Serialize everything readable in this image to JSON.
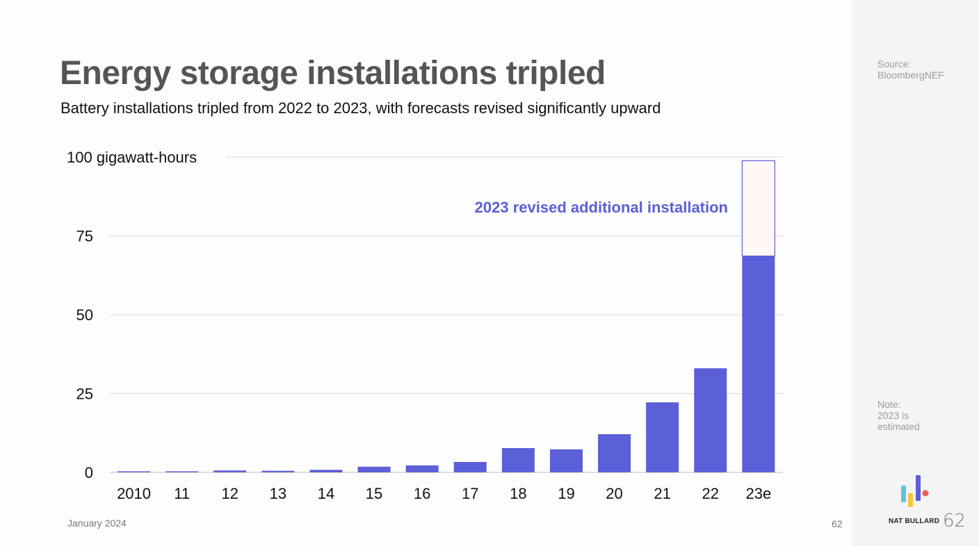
{
  "slide": {
    "title": "Energy storage installations tripled",
    "subtitle": "Battery installations tripled from 2022 to 2023, with forecasts revised significantly upward",
    "date": "January 2024",
    "page_number": "62"
  },
  "sidebar": {
    "source_label": "Source:",
    "source_value": "BloombergNEF",
    "note_label": "Note:",
    "note_value": "2023 is estimated",
    "brand_name": "NAT BULLARD",
    "brand_number": "62",
    "logo_colors": [
      "#5ec6d6",
      "#f4c542",
      "#5b5fd8",
      "#ef5b5b"
    ]
  },
  "chart_data": {
    "type": "bar",
    "stacked": true,
    "categories": [
      "2010",
      "11",
      "12",
      "13",
      "14",
      "15",
      "16",
      "17",
      "18",
      "19",
      "20",
      "21",
      "22",
      "23e"
    ],
    "series": [
      {
        "values": [
          0.2,
          0.3,
          0.6,
          0.5,
          0.8,
          1.8,
          2.2,
          3.3,
          7.7,
          7.3,
          12.1,
          22.2,
          33.0,
          68.6
        ],
        "color": "#5b5fd8"
      },
      {
        "name": "2023 revised additional installation",
        "values": [
          0,
          0,
          0,
          0,
          0,
          0,
          0,
          0,
          0,
          0,
          0,
          0,
          0,
          30.2
        ],
        "color": "#fff8f4",
        "stroke": "#5b5fd8"
      }
    ],
    "y_ticks": [
      {
        "value": 0,
        "label": "0"
      },
      {
        "value": 25,
        "label": "25"
      },
      {
        "value": 50,
        "label": "50"
      },
      {
        "value": 75,
        "label": "75"
      },
      {
        "value": 100,
        "label": "100 gigawatt-hours"
      }
    ],
    "ylim": [
      0,
      100
    ],
    "annotation": "2023 revised additional installation",
    "annotation_color": "#5b5fd8",
    "grid": true
  }
}
